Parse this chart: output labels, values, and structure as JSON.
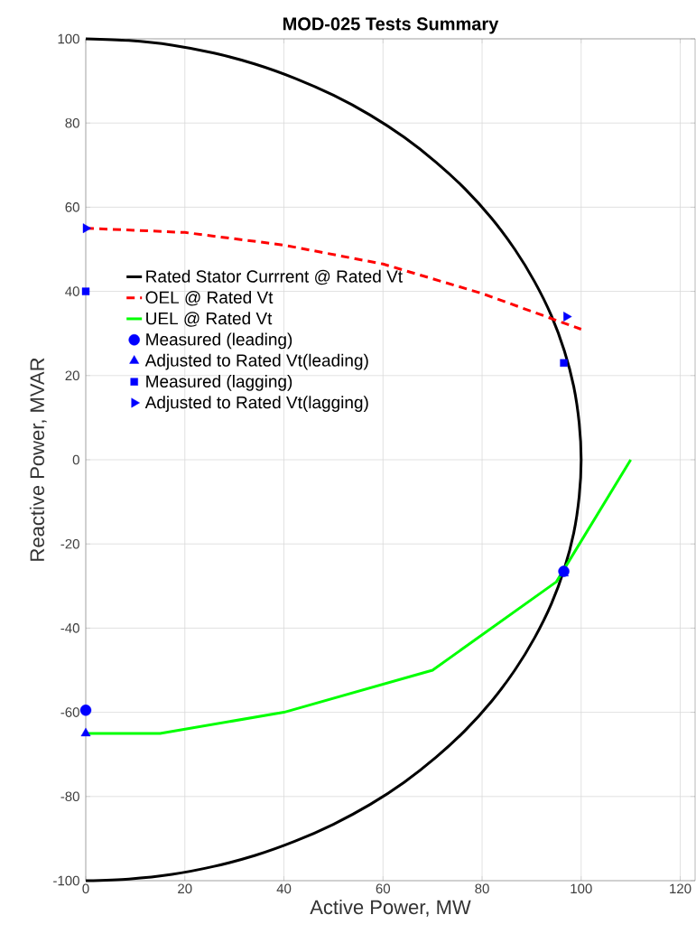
{
  "chart_data": {
    "type": "line",
    "title": "MOD-025 Tests Summary",
    "xlabel": "Active Power, MW",
    "ylabel": "Reactive Power, MVAR",
    "xlim": [
      0,
      123
    ],
    "ylim": [
      -100,
      100
    ],
    "xticks": [
      0,
      20,
      40,
      60,
      80,
      100,
      120
    ],
    "yticks": [
      -100,
      -80,
      -60,
      -40,
      -20,
      0,
      20,
      40,
      60,
      80,
      100
    ],
    "grid": true,
    "legend": "left",
    "series": [
      {
        "name": "Rated Stator Currrent @ Rated Vt",
        "color": "#000000",
        "line_style": "solid",
        "marker": "none",
        "x": [
          0,
          8.7,
          17.4,
          25.9,
          34.2,
          42.3,
          50,
          57.4,
          64.3,
          70.7,
          76.6,
          81.9,
          86.6,
          90.6,
          94,
          96.6,
          98.5,
          99.6,
          100,
          99.6,
          98.5,
          96.6,
          94,
          90.6,
          86.6,
          81.9,
          76.6,
          70.7,
          64.3,
          57.4,
          50,
          42.3,
          34.2,
          25.9,
          17.4,
          8.7,
          0
        ],
        "values": [
          -100,
          -99.6,
          -98.5,
          -96.6,
          -94,
          -90.6,
          -86.6,
          -81.9,
          -76.6,
          -70.7,
          -64.3,
          -57.4,
          -50,
          -42.3,
          -34.2,
          -25.9,
          -17.4,
          -8.7,
          0,
          8.7,
          17.4,
          25.9,
          34.2,
          42.3,
          50,
          57.4,
          64.3,
          70.7,
          76.6,
          81.9,
          86.6,
          90.6,
          94,
          96.6,
          98.5,
          99.6,
          100
        ]
      },
      {
        "name": "OEL @ Rated Vt",
        "color": "#ff0000",
        "line_style": "dashed",
        "marker": "none",
        "x": [
          0,
          20,
          40,
          60,
          80,
          100
        ],
        "values": [
          55,
          54,
          51,
          46.5,
          39.5,
          31
        ]
      },
      {
        "name": "UEL @ Rated Vt",
        "color": "#00ff00",
        "line_style": "solid",
        "marker": "none",
        "x": [
          0,
          15,
          40,
          70,
          95,
          110
        ],
        "values": [
          -65,
          -65,
          -60,
          -50,
          -29,
          0
        ]
      },
      {
        "name": "Measured (leading)",
        "type": "scatter",
        "color": "#0000ff",
        "marker": "circle",
        "x": [
          0,
          96.5
        ],
        "values": [
          -59.5,
          -26.5
        ]
      },
      {
        "name": "Adjusted to Rated Vt(leading)",
        "type": "scatter",
        "color": "#0000ff",
        "marker": "triangle",
        "x": [
          0,
          96.5
        ],
        "values": [
          -65,
          -27
        ]
      },
      {
        "name": "Measured (lagging)",
        "type": "scatter",
        "color": "#0000ff",
        "marker": "square",
        "x": [
          0,
          96.5
        ],
        "values": [
          40,
          23
        ]
      },
      {
        "name": "Adjusted to Rated Vt(lagging)",
        "type": "scatter",
        "color": "#0000ff",
        "marker": "triangle right",
        "x": [
          0,
          97
        ],
        "values": [
          55,
          34
        ]
      }
    ]
  }
}
